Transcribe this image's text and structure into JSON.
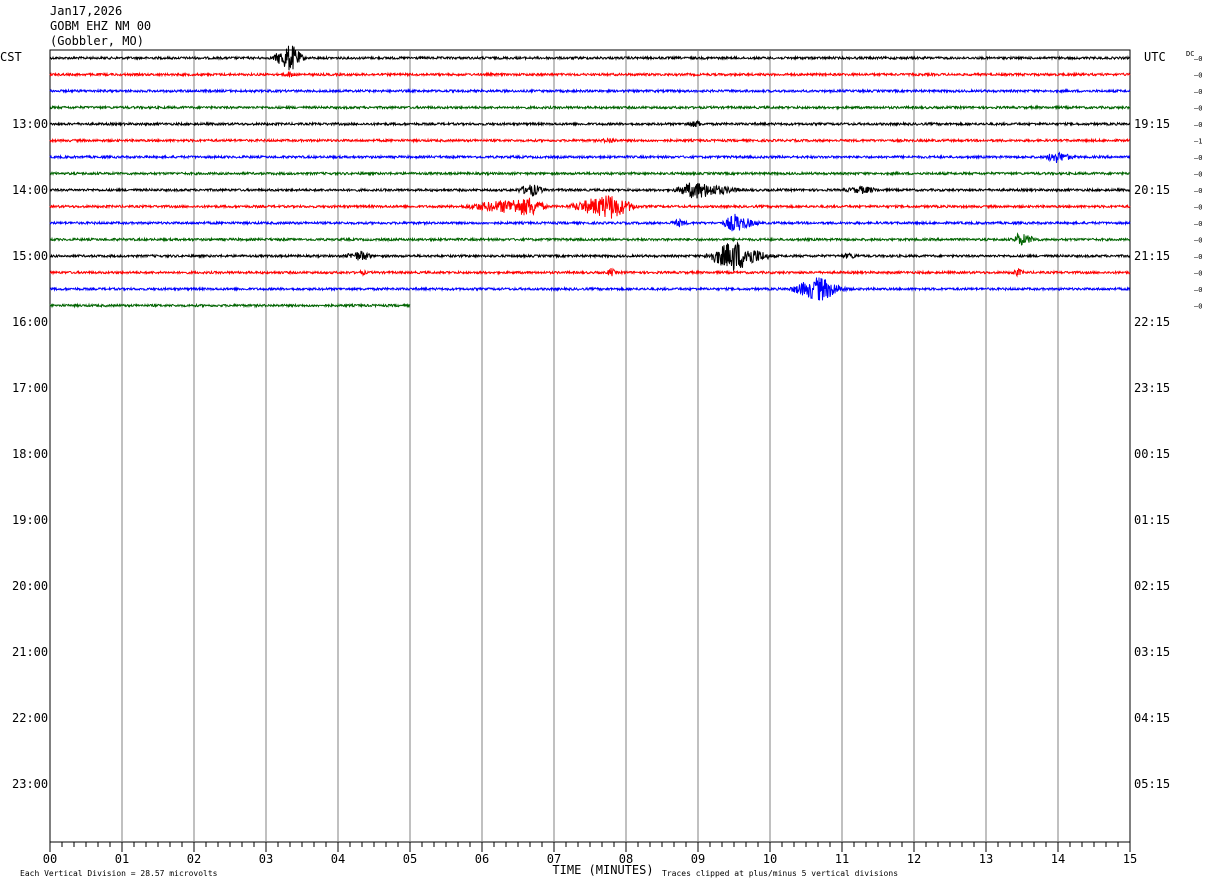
{
  "header": {
    "date": "Jan17,2026",
    "station": "GOBM EHZ NM 00",
    "location": "(Gobbler, MO)"
  },
  "left_tz": "CST",
  "right_tz": "UTC",
  "dc_label": "DC",
  "colors": {
    "black": "#000000",
    "red": "#ff0000",
    "blue": "#0000ff",
    "green": "#006400",
    "grid": "#808080"
  },
  "footer": {
    "left_text": "Each Vertical Division =   28.57 microvolts",
    "center_text": "TIME (MINUTES)",
    "right_text": "Traces clipped at plus/minus 5 vertical divisions"
  },
  "chart_data": {
    "type": "line",
    "description_units": "helicorder: 15-minute rows, x in minutes",
    "xlim": [
      0,
      15
    ],
    "x_tick_labels": [
      "00",
      "01",
      "02",
      "03",
      "04",
      "05",
      "06",
      "07",
      "08",
      "09",
      "10",
      "11",
      "12",
      "13",
      "14",
      "15"
    ],
    "left_hour_labels": [
      "13:00",
      "14:00",
      "15:00",
      "16:00",
      "17:00",
      "18:00",
      "19:00",
      "20:00",
      "21:00",
      "22:00",
      "23:00"
    ],
    "right_hour_labels": [
      "19:15",
      "20:15",
      "21:15",
      "22:15",
      "23:15",
      "00:15",
      "01:15",
      "02:15",
      "03:15",
      "04:15",
      "05:15"
    ],
    "dc_offsets": [
      "0",
      "0",
      "0",
      "0",
      "0",
      "1",
      "0",
      "0",
      "0",
      "0",
      "0",
      "0",
      "0",
      "0",
      "0",
      "0"
    ],
    "trace_colors": [
      "black",
      "red",
      "blue",
      "green",
      "black",
      "red",
      "blue",
      "green",
      "black",
      "red",
      "blue",
      "green",
      "black",
      "red",
      "blue",
      "green"
    ],
    "last_trace_end_minute": 5.0,
    "events": [
      {
        "row": 0,
        "start": 3.05,
        "peak": 3.35,
        "end": 3.6,
        "amp": 4.5
      },
      {
        "row": 1,
        "start": 3.2,
        "peak": 3.35,
        "end": 3.45,
        "amp": 1.2
      },
      {
        "row": 4,
        "start": 8.7,
        "peak": 9.0,
        "end": 9.1,
        "amp": 1.2
      },
      {
        "row": 5,
        "start": 7.55,
        "peak": 7.8,
        "end": 7.95,
        "amp": 1.0
      },
      {
        "row": 6,
        "start": 13.8,
        "peak": 13.95,
        "end": 14.4,
        "amp": 2.0
      },
      {
        "row": 8,
        "start": 6.4,
        "peak": 6.7,
        "end": 7.0,
        "amp": 2.0
      },
      {
        "row": 8,
        "start": 8.6,
        "peak": 8.95,
        "end": 9.9,
        "amp": 2.8
      },
      {
        "row": 8,
        "start": 10.9,
        "peak": 11.3,
        "end": 11.7,
        "amp": 1.3
      },
      {
        "row": 9,
        "start": 5.5,
        "peak": 6.7,
        "end": 7.0,
        "amp": 3.0
      },
      {
        "row": 9,
        "start": 7.1,
        "peak": 7.8,
        "end": 8.3,
        "amp": 4.0
      },
      {
        "row": 10,
        "start": 8.55,
        "peak": 8.75,
        "end": 8.95,
        "amp": 1.3
      },
      {
        "row": 10,
        "start": 9.3,
        "peak": 9.5,
        "end": 10.0,
        "amp": 3.0
      },
      {
        "row": 11,
        "start": 13.35,
        "peak": 13.45,
        "end": 13.9,
        "amp": 2.2
      },
      {
        "row": 12,
        "start": 4.0,
        "peak": 4.35,
        "end": 4.55,
        "amp": 1.8
      },
      {
        "row": 12,
        "start": 9.05,
        "peak": 9.5,
        "end": 10.2,
        "amp": 5.0
      },
      {
        "row": 12,
        "start": 10.9,
        "peak": 11.1,
        "end": 11.4,
        "amp": 1.0
      },
      {
        "row": 13,
        "start": 4.2,
        "peak": 4.35,
        "end": 4.5,
        "amp": 0.8
      },
      {
        "row": 13,
        "start": 7.7,
        "peak": 7.8,
        "end": 7.9,
        "amp": 1.5
      },
      {
        "row": 13,
        "start": 13.3,
        "peak": 13.45,
        "end": 13.6,
        "amp": 1.3
      },
      {
        "row": 14,
        "start": 10.2,
        "peak": 10.7,
        "end": 11.2,
        "amp": 4.0
      }
    ]
  }
}
